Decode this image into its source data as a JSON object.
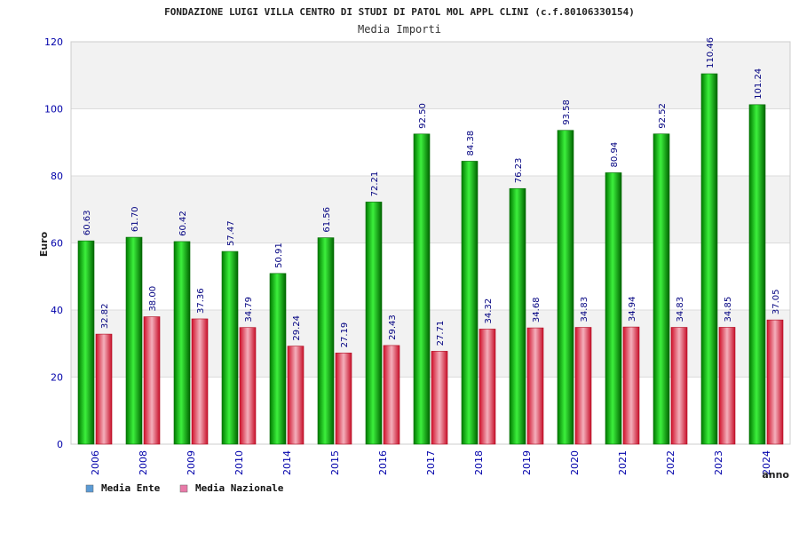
{
  "chart_data": {
    "type": "bar",
    "title": "FONDAZIONE LUIGI VILLA CENTRO DI STUDI DI PATOL MOL APPL CLINI (c.f.80106330154)",
    "subtitle": "Media Importi",
    "xlabel": "anno",
    "ylabel": "Euro",
    "ylim": [
      0,
      120
    ],
    "yticks": [
      "0",
      "20",
      "40",
      "60",
      "80",
      "100",
      "120"
    ],
    "categories": [
      "2006",
      "2008",
      "2009",
      "2010",
      "2014",
      "2015",
      "2016",
      "2017",
      "2018",
      "2019",
      "2020",
      "2021",
      "2022",
      "2023",
      "2024"
    ],
    "series": [
      {
        "name": "Media Ente",
        "color": "#00b000",
        "values": [
          60.63,
          61.7,
          60.42,
          57.47,
          50.91,
          61.56,
          72.21,
          92.5,
          84.38,
          76.23,
          93.58,
          80.94,
          92.52,
          110.46,
          101.24
        ],
        "labels": [
          "60.63",
          "61.70",
          "60.42",
          "57.47",
          "50.91",
          "61.56",
          "72.21",
          "92.50",
          "84.38",
          "76.23",
          "93.58",
          "80.94",
          "92.52",
          "110.46",
          "101.24"
        ]
      },
      {
        "name": "Media Nazionale",
        "color": "#e8203a",
        "values": [
          32.82,
          38.0,
          37.36,
          34.79,
          29.24,
          27.19,
          29.43,
          27.71,
          34.32,
          34.68,
          34.83,
          34.94,
          34.83,
          34.85,
          37.05
        ],
        "labels": [
          "32.82",
          "38.00",
          "37.36",
          "34.79",
          "29.24",
          "27.19",
          "29.43",
          "27.71",
          "34.32",
          "34.68",
          "34.83",
          "34.94",
          "34.83",
          "34.85",
          "37.05"
        ]
      }
    ],
    "legend": [
      {
        "label": "Media Ente",
        "color": "#5b9bd5"
      },
      {
        "label": "Media Nazionale",
        "color": "#e87aa8"
      }
    ]
  }
}
